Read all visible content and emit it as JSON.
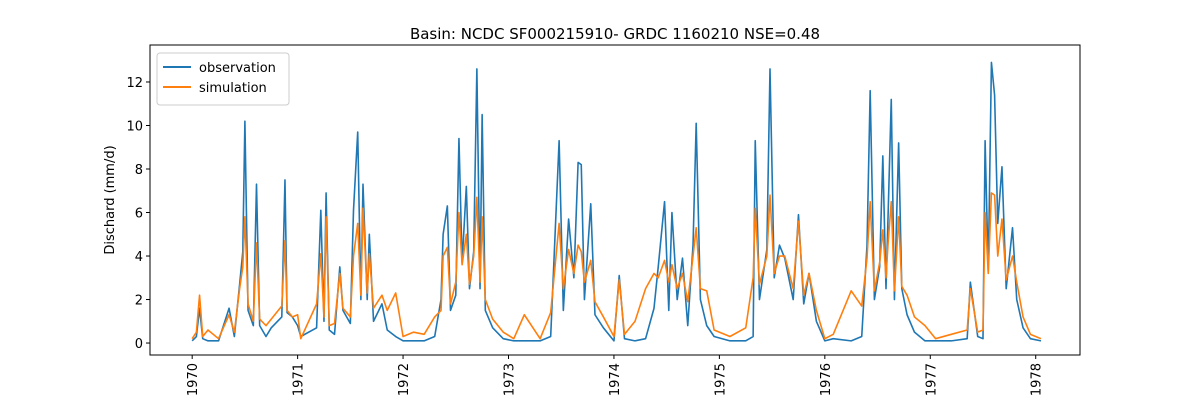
{
  "chart_data": {
    "type": "line",
    "title": "Basin: NCDC SF000215910- GRDC 1160210 NSE=0.48",
    "ylabel": "Dischard (mm/d)",
    "legend": "upper left",
    "xlim": [
      1969.6,
      1978.42
    ],
    "xticks": [
      1970,
      1971,
      1972,
      1973,
      1974,
      1975,
      1976,
      1977,
      1978
    ],
    "ylim": [
      -0.55,
      13.7
    ],
    "yticks": [
      0,
      2,
      4,
      6,
      8,
      10,
      12
    ],
    "x": [
      1970.0,
      1970.04,
      1970.07,
      1970.1,
      1970.15,
      1970.25,
      1970.35,
      1970.4,
      1970.45,
      1970.48,
      1970.5,
      1970.53,
      1970.58,
      1970.61,
      1970.64,
      1970.7,
      1970.75,
      1970.85,
      1970.88,
      1970.9,
      1970.95,
      1971.0,
      1971.03,
      1971.18,
      1971.22,
      1971.25,
      1971.27,
      1971.3,
      1971.35,
      1971.4,
      1971.43,
      1971.5,
      1971.53,
      1971.57,
      1971.6,
      1971.62,
      1971.66,
      1971.68,
      1971.72,
      1971.8,
      1971.85,
      1971.93,
      1972.0,
      1972.1,
      1972.2,
      1972.3,
      1972.36,
      1972.38,
      1972.42,
      1972.45,
      1972.5,
      1972.53,
      1972.56,
      1972.6,
      1972.63,
      1972.67,
      1972.7,
      1972.73,
      1972.75,
      1972.78,
      1972.85,
      1972.95,
      1973.05,
      1973.15,
      1973.3,
      1973.4,
      1973.48,
      1973.52,
      1973.57,
      1973.62,
      1973.66,
      1973.69,
      1973.72,
      1973.78,
      1973.82,
      1973.9,
      1974.0,
      1974.05,
      1974.1,
      1974.2,
      1974.3,
      1974.38,
      1974.42,
      1974.48,
      1974.52,
      1974.55,
      1974.6,
      1974.65,
      1974.7,
      1974.75,
      1974.78,
      1974.82,
      1974.88,
      1974.95,
      1975.1,
      1975.25,
      1975.32,
      1975.34,
      1975.38,
      1975.45,
      1975.48,
      1975.52,
      1975.57,
      1975.62,
      1975.7,
      1975.75,
      1975.8,
      1975.85,
      1975.92,
      1976.0,
      1976.08,
      1976.25,
      1976.35,
      1976.4,
      1976.43,
      1976.47,
      1976.52,
      1976.55,
      1976.58,
      1976.6,
      1976.63,
      1976.66,
      1976.7,
      1976.73,
      1976.78,
      1976.85,
      1976.95,
      1977.05,
      1977.2,
      1977.35,
      1977.38,
      1977.45,
      1977.5,
      1977.52,
      1977.55,
      1977.58,
      1977.61,
      1977.64,
      1977.68,
      1977.72,
      1977.78,
      1977.82,
      1977.88,
      1977.95,
      1978.05
    ],
    "series": [
      {
        "name": "observation",
        "color": "#1f77b4",
        "values": [
          0.1,
          0.3,
          1.6,
          0.2,
          0.1,
          0.1,
          1.6,
          0.3,
          2.7,
          4.2,
          10.2,
          1.5,
          0.8,
          7.3,
          0.8,
          0.3,
          0.7,
          1.2,
          7.5,
          1.4,
          1.2,
          0.8,
          0.3,
          0.7,
          6.1,
          1.0,
          6.9,
          0.6,
          0.4,
          3.5,
          1.5,
          0.9,
          6.1,
          9.7,
          2.0,
          7.3,
          2.0,
          5.0,
          1.0,
          1.8,
          0.6,
          0.3,
          0.1,
          0.1,
          0.1,
          0.3,
          2.0,
          5.0,
          6.3,
          1.5,
          2.2,
          9.4,
          3.7,
          7.2,
          2.5,
          4.2,
          12.6,
          2.5,
          10.5,
          1.5,
          0.7,
          0.2,
          0.1,
          0.1,
          0.1,
          0.3,
          9.3,
          1.5,
          5.7,
          3.0,
          8.3,
          8.2,
          2.0,
          6.4,
          1.3,
          0.7,
          0.1,
          3.1,
          0.2,
          0.1,
          0.2,
          1.6,
          3.5,
          6.5,
          1.5,
          6.0,
          2.0,
          3.9,
          0.8,
          4.5,
          10.1,
          2.0,
          0.8,
          0.3,
          0.1,
          0.1,
          0.3,
          9.3,
          2.0,
          4.3,
          12.6,
          3.0,
          4.5,
          3.9,
          2.0,
          5.9,
          1.8,
          3.2,
          1.0,
          0.1,
          0.2,
          0.1,
          0.3,
          4.5,
          11.6,
          2.0,
          3.5,
          8.6,
          2.5,
          5.9,
          11.2,
          2.0,
          9.2,
          2.5,
          1.3,
          0.5,
          0.1,
          0.1,
          0.1,
          0.2,
          2.8,
          0.3,
          0.2,
          9.3,
          3.3,
          12.9,
          11.4,
          5.5,
          8.1,
          2.5,
          5.3,
          2.0,
          0.7,
          0.2,
          0.1
        ]
      },
      {
        "name": "simulation",
        "color": "#ff7f0e",
        "values": [
          0.2,
          0.5,
          2.2,
          0.3,
          0.6,
          0.2,
          1.3,
          0.5,
          2.5,
          3.5,
          5.8,
          1.8,
          1.0,
          4.6,
          1.1,
          0.8,
          1.1,
          1.7,
          4.7,
          1.5,
          1.2,
          1.3,
          0.2,
          1.8,
          4.1,
          1.2,
          5.8,
          0.8,
          0.9,
          3.2,
          1.6,
          1.2,
          4.0,
          5.5,
          2.2,
          6.2,
          2.3,
          4.1,
          1.6,
          2.2,
          1.5,
          2.3,
          0.3,
          0.5,
          0.4,
          1.2,
          1.5,
          4.0,
          4.4,
          1.8,
          2.8,
          6.0,
          3.6,
          5.0,
          2.7,
          4.0,
          6.7,
          2.8,
          5.8,
          2.0,
          1.1,
          0.5,
          0.2,
          1.3,
          0.2,
          1.4,
          5.5,
          2.5,
          4.3,
          3.2,
          4.5,
          4.2,
          2.8,
          3.8,
          1.9,
          1.2,
          0.3,
          2.9,
          0.4,
          1.0,
          2.5,
          3.2,
          3.0,
          3.8,
          2.8,
          3.6,
          2.5,
          3.2,
          1.9,
          4.0,
          5.3,
          2.5,
          2.4,
          0.6,
          0.3,
          0.7,
          3.0,
          6.2,
          2.7,
          4.0,
          6.8,
          3.2,
          4.0,
          4.0,
          2.5,
          5.6,
          2.2,
          3.2,
          1.5,
          0.2,
          0.4,
          2.4,
          1.7,
          3.9,
          6.5,
          2.4,
          3.7,
          5.2,
          3.0,
          4.6,
          6.5,
          2.4,
          5.8,
          2.6,
          2.2,
          1.2,
          0.8,
          0.2,
          0.4,
          0.6,
          2.5,
          0.5,
          0.6,
          6.0,
          3.2,
          6.9,
          6.8,
          4.0,
          5.7,
          2.9,
          4.0,
          2.8,
          1.2,
          0.4,
          0.2
        ]
      }
    ]
  }
}
